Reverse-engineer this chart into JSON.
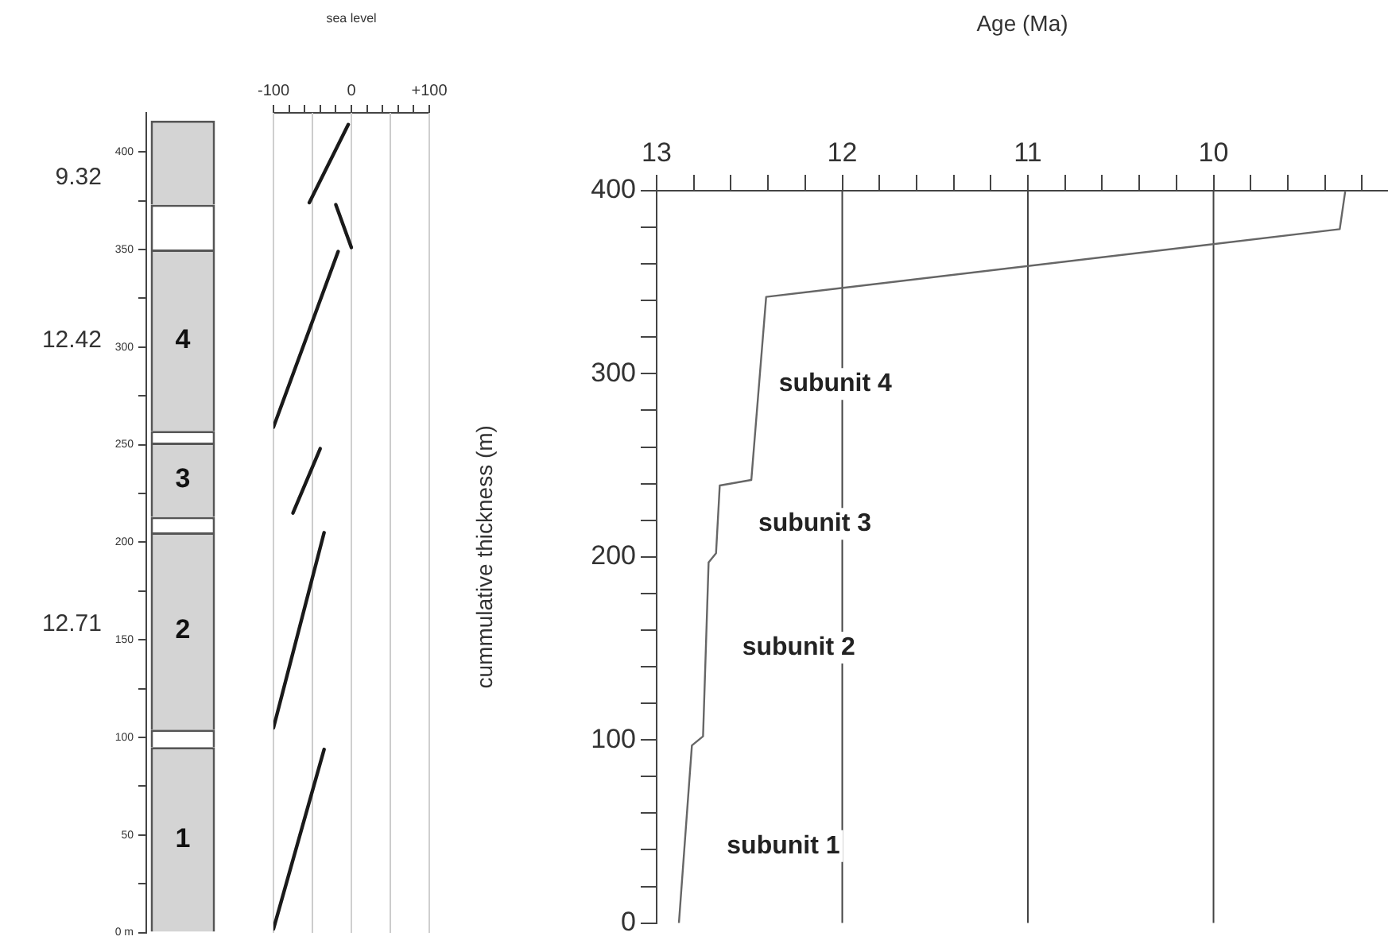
{
  "chart_data": [
    {
      "type": "bar",
      "stacked": true,
      "categories": [
        null
      ],
      "series": [
        {
          "name": "1",
          "color": "#d4d4d4",
          "values": [
            95
          ]
        },
        {
          "color": "#ffffff",
          "values": [
            9
          ]
        },
        {
          "name": "2",
          "color": "#d4d4d4",
          "values": [
            101
          ]
        },
        {
          "color": "#ffffff",
          "values": [
            8
          ]
        },
        {
          "name": "3",
          "color": "#d4d4d4",
          "values": [
            38
          ]
        },
        {
          "color": "#ffffff",
          "values": [
            6
          ]
        },
        {
          "name": "4",
          "color": "#d4d4d4",
          "values": [
            93
          ]
        },
        {
          "color": "#ffffff",
          "values": [
            23
          ]
        },
        {
          "color": "#d4d4d4",
          "values": [
            43
          ]
        }
      ],
      "ylim": [
        0,
        420
      ],
      "yticks": [
        {
          "value": 0,
          "label": "0 m"
        },
        {
          "value": 25,
          "label": null
        },
        50,
        {
          "value": 75,
          "label": null
        },
        100,
        {
          "value": 125,
          "label": null
        },
        150,
        {
          "value": 175,
          "label": null
        },
        200,
        {
          "value": 225,
          "label": null
        },
        250,
        {
          "value": 275,
          "label": null
        },
        300,
        {
          "value": 325,
          "label": null
        },
        350,
        {
          "value": 375,
          "label": null
        },
        400
      ],
      "annotations": [
        "9.32",
        "12.42",
        "12.71"
      ]
    },
    {
      "type": "line",
      "xlabel": "sea level",
      "grid": "x",
      "tick_labels": "x",
      "xlim": [
        -100,
        100
      ],
      "xticks": [
        -100,
        {
          "value": -80,
          "label": null
        },
        {
          "value": -60,
          "label": null
        },
        {
          "value": -40,
          "label": null
        },
        {
          "value": -20,
          "label": null
        },
        0,
        {
          "value": 20,
          "label": null
        },
        {
          "value": 40,
          "label": null
        },
        {
          "value": 60,
          "label": null
        },
        {
          "value": 80,
          "label": null
        },
        {
          "value": 100,
          "label": "+100"
        }
      ],
      "ylim": [
        0,
        420
      ],
      "ref_lines": [
        {
          "axis": "x",
          "value": -50,
          "color": "#cccccc"
        },
        {
          "axis": "x",
          "value": 50,
          "color": "#cccccc"
        }
      ],
      "series": [
        {
          "color": "#1a1a1a",
          "x": [
            -100,
            -35
          ],
          "values": [
            2,
            94
          ]
        },
        {
          "color": "#1a1a1a",
          "x": [
            -100,
            -35
          ],
          "values": [
            105,
            205
          ]
        },
        {
          "color": "#1a1a1a",
          "x": [
            -75,
            -40
          ],
          "values": [
            215,
            248
          ]
        },
        {
          "color": "#1a1a1a",
          "x": [
            -100,
            -17
          ],
          "values": [
            259,
            349
          ]
        },
        {
          "color": "#1a1a1a",
          "x": [
            -20,
            0
          ],
          "values": [
            373,
            351
          ]
        },
        {
          "color": "#1a1a1a",
          "x": [
            -54,
            -4
          ],
          "values": [
            374,
            414
          ]
        }
      ]
    },
    {
      "type": "line",
      "xlabel": "Age (Ma)",
      "ylabel": "cummulative thickness (m)",
      "grid": "x",
      "xlim": [
        13,
        9.06
      ],
      "xticks": [
        13,
        {
          "value": 12.8,
          "label": null
        },
        {
          "value": 12.6,
          "label": null
        },
        {
          "value": 12.4,
          "label": null
        },
        {
          "value": 12.2,
          "label": null
        },
        12,
        {
          "value": 11.8,
          "label": null
        },
        {
          "value": 11.6,
          "label": null
        },
        {
          "value": 11.4,
          "label": null
        },
        {
          "value": 11.2,
          "label": null
        },
        11,
        {
          "value": 10.8,
          "label": null
        },
        {
          "value": 10.6,
          "label": null
        },
        {
          "value": 10.4,
          "label": null
        },
        {
          "value": 10.2,
          "label": null
        },
        10,
        {
          "value": 9.8,
          "label": null
        },
        {
          "value": 9.6,
          "label": null
        },
        {
          "value": 9.4,
          "label": null
        },
        {
          "value": 9.2,
          "label": null
        }
      ],
      "ylim": [
        0,
        400
      ],
      "yticks": [
        0,
        {
          "value": 20,
          "label": null
        },
        {
          "value": 40,
          "label": null
        },
        {
          "value": 60,
          "label": null
        },
        {
          "value": 80,
          "label": null
        },
        100,
        {
          "value": 120,
          "label": null
        },
        {
          "value": 140,
          "label": null
        },
        {
          "value": 160,
          "label": null
        },
        {
          "value": 180,
          "label": null
        },
        200,
        {
          "value": 220,
          "label": null
        },
        {
          "value": 240,
          "label": null
        },
        {
          "value": 260,
          "label": null
        },
        {
          "value": 280,
          "label": null
        },
        300,
        {
          "value": 320,
          "label": null
        },
        {
          "value": 340,
          "label": null
        },
        {
          "value": 360,
          "label": null
        },
        {
          "value": 380,
          "label": null
        },
        400
      ],
      "annotations": [
        "subunit 4",
        "subunit 3",
        "subunit 2",
        "subunit 1"
      ],
      "series": [
        {
          "color": "#666666",
          "x": [
            12.88,
            12.81,
            12.75,
            12.72,
            12.68,
            12.66,
            12.49,
            12.41,
            9.32,
            9.29
          ],
          "values": [
            0,
            97,
            102,
            197,
            202,
            239,
            242,
            342,
            379,
            400
          ]
        }
      ]
    }
  ]
}
